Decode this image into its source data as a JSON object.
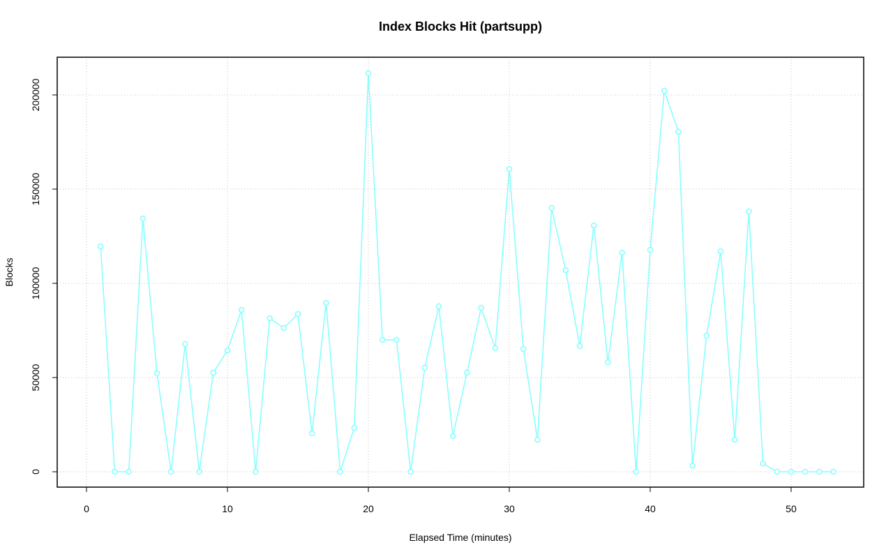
{
  "chart_data": {
    "type": "line",
    "title": "Index Blocks Hit (partsupp)",
    "x_label": "Elapsed Time (minutes)",
    "y_label": "Blocks",
    "x": [
      1,
      2,
      3,
      4,
      5,
      6,
      7,
      8,
      9,
      10,
      11,
      12,
      13,
      14,
      15,
      16,
      17,
      18,
      19,
      20,
      21,
      22,
      23,
      24,
      25,
      26,
      27,
      28,
      29,
      30,
      31,
      32,
      33,
      34,
      35,
      36,
      37,
      38,
      39,
      40,
      41,
      42,
      43,
      44,
      45,
      46,
      47,
      48,
      49,
      50,
      51,
      52,
      53
    ],
    "values": [
      119600,
      0,
      0,
      134400,
      52200,
      0,
      67800,
      0,
      52600,
      64400,
      85900,
      0,
      81500,
      76300,
      83700,
      20400,
      89600,
      0,
      23300,
      211500,
      70000,
      70000,
      0,
      55200,
      87800,
      18900,
      52600,
      87000,
      65600,
      160700,
      65200,
      17000,
      140000,
      107000,
      66700,
      130700,
      58100,
      116300,
      0,
      117800,
      202200,
      180400,
      3300,
      72200,
      117000,
      17000,
      138100,
      4400,
      0,
      0,
      0,
      0,
      0
    ],
    "color": "#80ffff",
    "xlim": [
      -2.08,
      55.15
    ],
    "ylim": [
      -8150,
      220000
    ],
    "xticks": [
      0,
      10,
      20,
      30,
      40,
      50
    ],
    "yticks": [
      0,
      50000,
      100000,
      150000,
      200000
    ],
    "grid": true
  }
}
